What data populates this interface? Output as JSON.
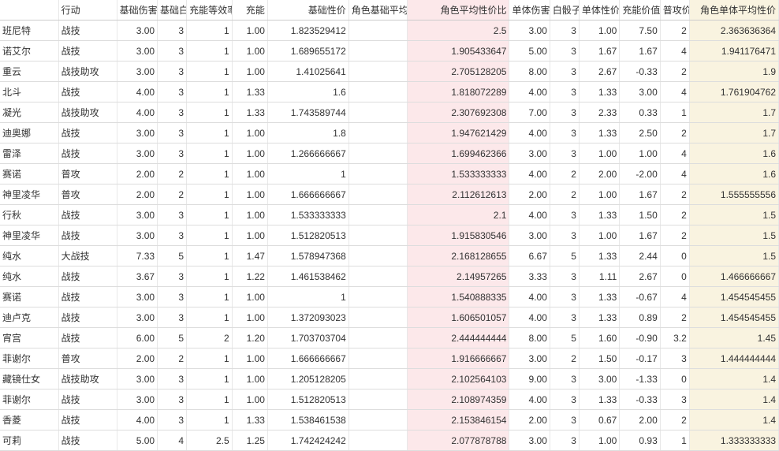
{
  "colors": {
    "highlight_pink": "#fce8ea",
    "highlight_yellow": "#f9f3e0",
    "border": "#dddddd",
    "text": "#333333"
  },
  "columns": [
    {
      "key": "name",
      "label": "",
      "width": 72,
      "align": "left"
    },
    {
      "key": "action",
      "label": "行动",
      "width": 72,
      "align": "left"
    },
    {
      "key": "baseDmg",
      "label": "基础伤害",
      "width": 50,
      "align": "right"
    },
    {
      "key": "baseWhite",
      "label": "基础白",
      "width": 36,
      "align": "right"
    },
    {
      "key": "energyEff",
      "label": "充能等效率",
      "width": 56,
      "align": "right"
    },
    {
      "key": "energy",
      "label": "充能",
      "width": 44,
      "align": "right"
    },
    {
      "key": "baseRatio",
      "label": "基础性价",
      "width": 100,
      "align": "right"
    },
    {
      "key": "charBaseAvg",
      "label": "角色基础平均性",
      "width": 72,
      "align": "right"
    },
    {
      "key": "charAvgRatio",
      "label": "角色平均性价比",
      "width": 126,
      "align": "right",
      "highlight": "pink"
    },
    {
      "key": "singleDmg",
      "label": "单体伤害",
      "width": 50,
      "align": "right"
    },
    {
      "key": "whiteDice",
      "label": "白骰子",
      "width": 36,
      "align": "right"
    },
    {
      "key": "singleRatio",
      "label": "单体性价",
      "width": 50,
      "align": "right"
    },
    {
      "key": "energyVal",
      "label": "充能价值",
      "width": 50,
      "align": "right"
    },
    {
      "key": "normalAtk",
      "label": "普攻价",
      "width": 36,
      "align": "right"
    },
    {
      "key": "charSingleAvg",
      "label": "角色单体平均性价",
      "width": 110,
      "align": "right",
      "highlight": "yellow"
    }
  ],
  "rows": [
    {
      "name": "班尼特",
      "action": "战技",
      "baseDmg": "3.00",
      "baseWhite": "3",
      "energyEff": "1",
      "energy": "1.00",
      "baseRatio": "1.823529412",
      "charBaseAvg": "",
      "charAvgRatio": "2.5",
      "singleDmg": "3.00",
      "whiteDice": "3",
      "singleRatio": "1.00",
      "energyVal": "7.50",
      "normalAtk": "2",
      "charSingleAvg": "2.363636364"
    },
    {
      "name": "诺艾尔",
      "action": "战技",
      "baseDmg": "3.00",
      "baseWhite": "3",
      "energyEff": "1",
      "energy": "1.00",
      "baseRatio": "1.689655172",
      "charBaseAvg": "",
      "charAvgRatio": "1.905433647",
      "singleDmg": "5.00",
      "whiteDice": "3",
      "singleRatio": "1.67",
      "energyVal": "1.67",
      "normalAtk": "4",
      "charSingleAvg": "1.941176471"
    },
    {
      "name": "重云",
      "action": "战技助攻",
      "baseDmg": "3.00",
      "baseWhite": "3",
      "energyEff": "1",
      "energy": "1.00",
      "baseRatio": "1.41025641",
      "charBaseAvg": "",
      "charAvgRatio": "2.705128205",
      "singleDmg": "8.00",
      "whiteDice": "3",
      "singleRatio": "2.67",
      "energyVal": "-0.33",
      "normalAtk": "2",
      "charSingleAvg": "1.9"
    },
    {
      "name": "北斗",
      "action": "战技",
      "baseDmg": "4.00",
      "baseWhite": "3",
      "energyEff": "1",
      "energy": "1.33",
      "baseRatio": "1.6",
      "charBaseAvg": "",
      "charAvgRatio": "1.818072289",
      "singleDmg": "4.00",
      "whiteDice": "3",
      "singleRatio": "1.33",
      "energyVal": "3.00",
      "normalAtk": "4",
      "charSingleAvg": "1.761904762"
    },
    {
      "name": "凝光",
      "action": "战技助攻",
      "baseDmg": "4.00",
      "baseWhite": "3",
      "energyEff": "1",
      "energy": "1.33",
      "baseRatio": "1.743589744",
      "charBaseAvg": "",
      "charAvgRatio": "2.307692308",
      "singleDmg": "7.00",
      "whiteDice": "3",
      "singleRatio": "2.33",
      "energyVal": "0.33",
      "normalAtk": "1",
      "charSingleAvg": "1.7"
    },
    {
      "name": "迪奥娜",
      "action": "战技",
      "baseDmg": "3.00",
      "baseWhite": "3",
      "energyEff": "1",
      "energy": "1.00",
      "baseRatio": "1.8",
      "charBaseAvg": "",
      "charAvgRatio": "1.947621429",
      "singleDmg": "4.00",
      "whiteDice": "3",
      "singleRatio": "1.33",
      "energyVal": "2.50",
      "normalAtk": "2",
      "charSingleAvg": "1.7"
    },
    {
      "name": "雷泽",
      "action": "战技",
      "baseDmg": "3.00",
      "baseWhite": "3",
      "energyEff": "1",
      "energy": "1.00",
      "baseRatio": "1.266666667",
      "charBaseAvg": "",
      "charAvgRatio": "1.699462366",
      "singleDmg": "3.00",
      "whiteDice": "3",
      "singleRatio": "1.00",
      "energyVal": "1.00",
      "normalAtk": "4",
      "charSingleAvg": "1.6"
    },
    {
      "name": "赛诺",
      "action": "普攻",
      "baseDmg": "2.00",
      "baseWhite": "2",
      "energyEff": "1",
      "energy": "1.00",
      "baseRatio": "1",
      "charBaseAvg": "",
      "charAvgRatio": "1.533333333",
      "singleDmg": "4.00",
      "whiteDice": "2",
      "singleRatio": "2.00",
      "energyVal": "-2.00",
      "normalAtk": "4",
      "charSingleAvg": "1.6"
    },
    {
      "name": "神里凌华",
      "action": "普攻",
      "baseDmg": "2.00",
      "baseWhite": "2",
      "energyEff": "1",
      "energy": "1.00",
      "baseRatio": "1.666666667",
      "charBaseAvg": "",
      "charAvgRatio": "2.112612613",
      "singleDmg": "2.00",
      "whiteDice": "2",
      "singleRatio": "1.00",
      "energyVal": "1.67",
      "normalAtk": "2",
      "charSingleAvg": "1.555555556"
    },
    {
      "name": "行秋",
      "action": "战技",
      "baseDmg": "3.00",
      "baseWhite": "3",
      "energyEff": "1",
      "energy": "1.00",
      "baseRatio": "1.533333333",
      "charBaseAvg": "",
      "charAvgRatio": "2.1",
      "singleDmg": "4.00",
      "whiteDice": "3",
      "singleRatio": "1.33",
      "energyVal": "1.50",
      "normalAtk": "2",
      "charSingleAvg": "1.5"
    },
    {
      "name": "神里凌华",
      "action": "战技",
      "baseDmg": "3.00",
      "baseWhite": "3",
      "energyEff": "1",
      "energy": "1.00",
      "baseRatio": "1.512820513",
      "charBaseAvg": "",
      "charAvgRatio": "1.915830546",
      "singleDmg": "3.00",
      "whiteDice": "3",
      "singleRatio": "1.00",
      "energyVal": "1.67",
      "normalAtk": "2",
      "charSingleAvg": "1.5"
    },
    {
      "name": "纯水",
      "action": "大战技",
      "baseDmg": "7.33",
      "baseWhite": "5",
      "energyEff": "1",
      "energy": "1.47",
      "baseRatio": "1.578947368",
      "charBaseAvg": "",
      "charAvgRatio": "2.168128655",
      "singleDmg": "6.67",
      "whiteDice": "5",
      "singleRatio": "1.33",
      "energyVal": "2.44",
      "normalAtk": "0",
      "charSingleAvg": "1.5"
    },
    {
      "name": "纯水",
      "action": "战技",
      "baseDmg": "3.67",
      "baseWhite": "3",
      "energyEff": "1",
      "energy": "1.22",
      "baseRatio": "1.461538462",
      "charBaseAvg": "",
      "charAvgRatio": "2.14957265",
      "singleDmg": "3.33",
      "whiteDice": "3",
      "singleRatio": "1.11",
      "energyVal": "2.67",
      "normalAtk": "0",
      "charSingleAvg": "1.466666667"
    },
    {
      "name": "赛诺",
      "action": "战技",
      "baseDmg": "3.00",
      "baseWhite": "3",
      "energyEff": "1",
      "energy": "1.00",
      "baseRatio": "1",
      "charBaseAvg": "",
      "charAvgRatio": "1.540888335",
      "singleDmg": "4.00",
      "whiteDice": "3",
      "singleRatio": "1.33",
      "energyVal": "-0.67",
      "normalAtk": "4",
      "charSingleAvg": "1.454545455"
    },
    {
      "name": "迪卢克",
      "action": "战技",
      "baseDmg": "3.00",
      "baseWhite": "3",
      "energyEff": "1",
      "energy": "1.00",
      "baseRatio": "1.372093023",
      "charBaseAvg": "",
      "charAvgRatio": "1.606501057",
      "singleDmg": "4.00",
      "whiteDice": "3",
      "singleRatio": "1.33",
      "energyVal": "0.89",
      "normalAtk": "2",
      "charSingleAvg": "1.454545455"
    },
    {
      "name": "宵宫",
      "action": "战技",
      "baseDmg": "6.00",
      "baseWhite": "5",
      "energyEff": "2",
      "energy": "1.20",
      "baseRatio": "1.703703704",
      "charBaseAvg": "",
      "charAvgRatio": "2.444444444",
      "singleDmg": "8.00",
      "whiteDice": "5",
      "singleRatio": "1.60",
      "energyVal": "-0.90",
      "normalAtk": "3.2",
      "charSingleAvg": "1.45"
    },
    {
      "name": "菲谢尔",
      "action": "普攻",
      "baseDmg": "2.00",
      "baseWhite": "2",
      "energyEff": "1",
      "energy": "1.00",
      "baseRatio": "1.666666667",
      "charBaseAvg": "",
      "charAvgRatio": "1.916666667",
      "singleDmg": "3.00",
      "whiteDice": "2",
      "singleRatio": "1.50",
      "energyVal": "-0.17",
      "normalAtk": "3",
      "charSingleAvg": "1.444444444"
    },
    {
      "name": "藏镜仕女",
      "action": "战技助攻",
      "baseDmg": "3.00",
      "baseWhite": "3",
      "energyEff": "1",
      "energy": "1.00",
      "baseRatio": "1.205128205",
      "charBaseAvg": "",
      "charAvgRatio": "2.102564103",
      "singleDmg": "9.00",
      "whiteDice": "3",
      "singleRatio": "3.00",
      "energyVal": "-1.33",
      "normalAtk": "0",
      "charSingleAvg": "1.4"
    },
    {
      "name": "菲谢尔",
      "action": "战技",
      "baseDmg": "3.00",
      "baseWhite": "3",
      "energyEff": "1",
      "energy": "1.00",
      "baseRatio": "1.512820513",
      "charBaseAvg": "",
      "charAvgRatio": "2.108974359",
      "singleDmg": "4.00",
      "whiteDice": "3",
      "singleRatio": "1.33",
      "energyVal": "-0.33",
      "normalAtk": "3",
      "charSingleAvg": "1.4"
    },
    {
      "name": "香菱",
      "action": "战技",
      "baseDmg": "4.00",
      "baseWhite": "3",
      "energyEff": "1",
      "energy": "1.33",
      "baseRatio": "1.538461538",
      "charBaseAvg": "",
      "charAvgRatio": "2.153846154",
      "singleDmg": "2.00",
      "whiteDice": "3",
      "singleRatio": "0.67",
      "energyVal": "2.00",
      "normalAtk": "2",
      "charSingleAvg": "1.4"
    },
    {
      "name": "可莉",
      "action": "战技",
      "baseDmg": "5.00",
      "baseWhite": "4",
      "energyEff": "2.5",
      "energy": "1.25",
      "baseRatio": "1.742424242",
      "charBaseAvg": "",
      "charAvgRatio": "2.077878788",
      "singleDmg": "3.00",
      "whiteDice": "3",
      "singleRatio": "1.00",
      "energyVal": "0.93",
      "normalAtk": "1",
      "charSingleAvg": "1.333333333"
    }
  ]
}
